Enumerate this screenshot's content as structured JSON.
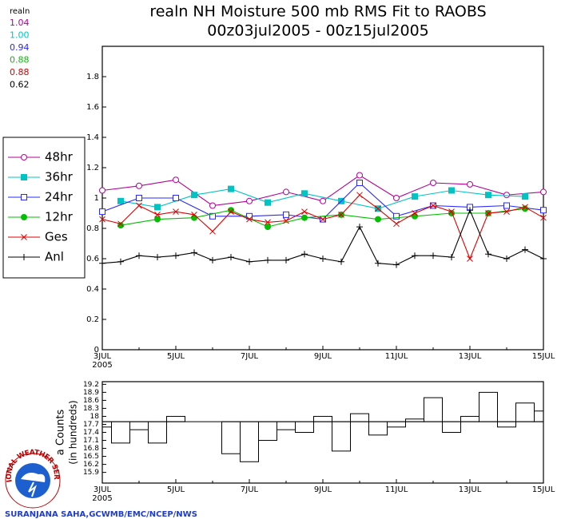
{
  "chart_data": [
    {
      "type": "line",
      "title": "realn NH Moisture 500 mb RMS Fit to RAOBS",
      "subtitle": "00z03jul2005 - 00z15jul2005",
      "experiment": "realn",
      "xlim": [
        3,
        15
      ],
      "ylim": [
        0,
        2
      ],
      "xticks": [
        {
          "value": 3,
          "label": "3JUL"
        },
        {
          "value": 5,
          "label": "5JUL"
        },
        {
          "value": 7,
          "label": "7JUL"
        },
        {
          "value": 9,
          "label": "9JUL"
        },
        {
          "value": 11,
          "label": "11JUL"
        },
        {
          "value": 13,
          "label": "13JUL"
        },
        {
          "value": 15,
          "label": "15JUL"
        }
      ],
      "x_year_label": "2005",
      "yticks": [
        0,
        0.2,
        0.4,
        0.6,
        0.8,
        1,
        1.2,
        1.4,
        1.6,
        1.8
      ],
      "grid": false,
      "series": [
        {
          "name": "48hr",
          "color": "#b4009a",
          "marker": "open-circle",
          "mean_label": "1.04",
          "x": [
            3,
            4,
            5,
            6,
            7,
            8,
            9,
            10,
            11,
            12,
            13,
            14,
            15
          ],
          "values": [
            1.05,
            1.08,
            1.12,
            0.95,
            0.98,
            1.04,
            0.98,
            1.15,
            1.0,
            1.1,
            1.09,
            1.02,
            1.04
          ]
        },
        {
          "name": "36hr",
          "color": "#00c4c4",
          "marker": "filled-square",
          "mean_label": "1.00",
          "x": [
            3.5,
            4.5,
            5.5,
            6.5,
            7.5,
            8.5,
            9.5,
            10.5,
            11.5,
            12.5,
            13.5,
            14.5
          ],
          "values": [
            0.98,
            0.94,
            1.02,
            1.06,
            0.97,
            1.03,
            0.98,
            0.93,
            1.01,
            1.05,
            1.02,
            1.01
          ]
        },
        {
          "name": "24hr",
          "color": "#2828ff",
          "marker": "open-square",
          "mean_label": "0.94",
          "x": [
            3,
            4,
            5,
            6,
            7,
            8,
            9,
            10,
            11,
            12,
            13,
            14,
            15
          ],
          "values": [
            0.91,
            1.0,
            1.0,
            0.88,
            0.88,
            0.89,
            0.86,
            1.1,
            0.88,
            0.95,
            0.94,
            0.95,
            0.92
          ]
        },
        {
          "name": "12hr",
          "color": "#00c000",
          "marker": "filled-circle",
          "mean_label": "0.88",
          "x": [
            3.5,
            4.5,
            5.5,
            6.5,
            7.5,
            8.5,
            9.5,
            10.5,
            11.5,
            12.5,
            13.5,
            14.5
          ],
          "values": [
            0.82,
            0.86,
            0.87,
            0.92,
            0.81,
            0.87,
            0.89,
            0.86,
            0.88,
            0.9,
            0.9,
            0.93
          ]
        },
        {
          "name": "Ges",
          "color": "#e00000",
          "marker": "cross",
          "mean_label": "0.88",
          "x": [
            3,
            3.5,
            4,
            4.5,
            5,
            5.5,
            6,
            6.5,
            7,
            7.5,
            8,
            8.5,
            9,
            9.5,
            10,
            10.5,
            11,
            11.5,
            12,
            12.5,
            13,
            13.5,
            14,
            14.5,
            15
          ],
          "values": [
            0.86,
            0.83,
            0.95,
            0.89,
            0.91,
            0.89,
            0.78,
            0.91,
            0.86,
            0.84,
            0.85,
            0.91,
            0.86,
            0.89,
            1.02,
            0.93,
            0.83,
            0.9,
            0.95,
            0.91,
            0.6,
            0.9,
            0.91,
            0.94,
            0.87
          ]
        },
        {
          "name": "Anl",
          "color": "#000000",
          "marker": "plus",
          "mean_label": "0.62",
          "x": [
            3,
            3.5,
            4,
            4.5,
            5,
            5.5,
            6,
            6.5,
            7,
            7.5,
            8,
            8.5,
            9,
            9.5,
            10,
            10.5,
            11,
            11.5,
            12,
            12.5,
            13,
            13.5,
            14,
            14.5,
            15
          ],
          "values": [
            0.57,
            0.58,
            0.62,
            0.61,
            0.62,
            0.64,
            0.59,
            0.61,
            0.58,
            0.59,
            0.59,
            0.63,
            0.6,
            0.58,
            0.81,
            0.57,
            0.56,
            0.62,
            0.62,
            0.61,
            0.92,
            0.63,
            0.6,
            0.66,
            0.6
          ]
        }
      ]
    },
    {
      "type": "step",
      "y_label": "a Counts",
      "y_sublabel": "(in hundreds)",
      "xlim": [
        3,
        15
      ],
      "ylim": [
        15.5,
        19.3
      ],
      "xticks": [
        {
          "value": 3,
          "label": "3JUL"
        },
        {
          "value": 5,
          "label": "5JUL"
        },
        {
          "value": 7,
          "label": "7JUL"
        },
        {
          "value": 9,
          "label": "9JUL"
        },
        {
          "value": 11,
          "label": "11JUL"
        },
        {
          "value": 13,
          "label": "13JUL"
        },
        {
          "value": 15,
          "label": "15JUL"
        }
      ],
      "x_year_label": "2005",
      "yticks": [
        15.9,
        16.2,
        16.5,
        16.8,
        17.1,
        17.4,
        17.7,
        18,
        18.3,
        18.6,
        18.9,
        19.2
      ],
      "reference": 17.8,
      "color": "#000000",
      "x": [
        3,
        3.5,
        4,
        4.5,
        5,
        5.5,
        6,
        6.5,
        7,
        7.5,
        8,
        8.5,
        9,
        9.5,
        10,
        10.5,
        11,
        11.5,
        12,
        12.5,
        13,
        13.5,
        14,
        14.5,
        15
      ],
      "values": [
        17.6,
        17.0,
        17.5,
        17.0,
        18.0,
        17.8,
        17.8,
        16.6,
        16.3,
        17.1,
        17.5,
        17.4,
        18.0,
        16.7,
        18.1,
        17.3,
        17.6,
        17.9,
        18.7,
        17.4,
        18.0,
        18.9,
        17.6,
        18.5,
        18.2
      ]
    }
  ],
  "footer": {
    "credit": "SURANJANA SAHA,GCWMB/EMC/NCEP/NWS",
    "logo_text": "NATIONAL WEATHER SERVICE"
  }
}
